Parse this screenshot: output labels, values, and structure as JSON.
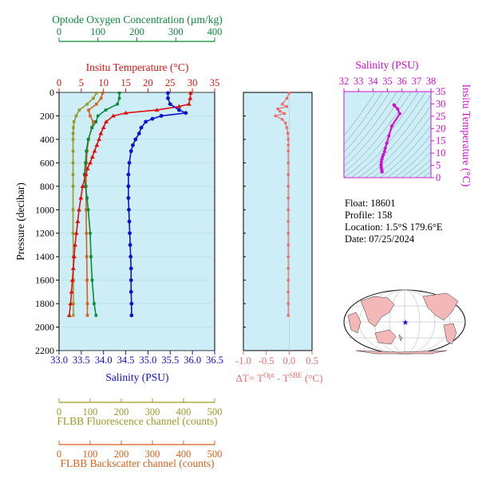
{
  "colors": {
    "oxygen": "#0a8a3a",
    "temperature": "#e01010",
    "salinity": "#1010d0",
    "fluorescence": "#9a9a28",
    "backscatter": "#d86018",
    "delta_t": "#f06a6a",
    "ts_axis": "#d010d0",
    "plot_bg": "#cdeef7",
    "black": "#000000"
  },
  "info": {
    "float": "Float:  18601",
    "profile": "Profile:  158",
    "location": "Location:  1.5°S  179.6°E",
    "date": "Date:  07/25/2024"
  },
  "chart_data": [
    {
      "type": "line",
      "title": "",
      "ylabel": "Pressure (decibar)",
      "ylim": [
        2200,
        0
      ],
      "yticks": [
        "0",
        "200",
        "400",
        "600",
        "800",
        "1000",
        "1200",
        "1400",
        "1600",
        "1800",
        "2000",
        "2200"
      ],
      "axes": {
        "oxygen": {
          "label": "Optode Oxygen Concentration (µm/kg)",
          "ticks": [
            "0",
            "100",
            "200",
            "300",
            "400"
          ],
          "range": [
            0,
            400
          ]
        },
        "temperature": {
          "label": "Insitu Temperature (°C)",
          "ticks": [
            "0",
            "5",
            "10",
            "15",
            "20",
            "25",
            "30",
            "35"
          ],
          "range": [
            0,
            35
          ]
        },
        "salinity": {
          "label": "Salinity (PSU)",
          "ticks": [
            "33.0",
            "33.5",
            "34.0",
            "34.5",
            "35.0",
            "35.5",
            "36.0",
            "36.5"
          ],
          "range": [
            33.0,
            36.5
          ]
        },
        "fluorescence": {
          "label": "FLBB Fluorescence channel (counts)",
          "ticks": [
            "0",
            "100",
            "200",
            "300",
            "400",
            "500"
          ],
          "range": [
            0,
            500
          ]
        },
        "backscatter": {
          "label": "FLBB Backscatter channel (counts)",
          "ticks": [
            "0",
            "100",
            "200",
            "300",
            "400",
            "500"
          ],
          "range": [
            0,
            500
          ]
        }
      },
      "series": [
        {
          "key": "temperature",
          "marker": "triangle",
          "pressure": [
            5,
            50,
            100,
            120,
            150,
            175,
            200,
            250,
            300,
            350,
            400,
            450,
            500,
            550,
            600,
            650,
            700,
            800,
            900,
            1000,
            1100,
            1200,
            1300,
            1400,
            1500,
            1600,
            1700,
            1800,
            1900
          ],
          "values": [
            29.6,
            29.5,
            29.2,
            27.0,
            22.0,
            15.0,
            12.2,
            10.6,
            10.0,
            9.4,
            9.0,
            8.5,
            8.0,
            7.5,
            7.0,
            6.4,
            6.0,
            5.3,
            4.9,
            4.5,
            4.2,
            3.9,
            3.6,
            3.4,
            3.2,
            3.0,
            2.8,
            2.6,
            2.3
          ]
        },
        {
          "key": "salinity",
          "marker": "circle",
          "pressure": [
            5,
            50,
            100,
            150,
            175,
            200,
            225,
            250,
            300,
            350,
            400,
            450,
            500,
            600,
            700,
            800,
            900,
            1000,
            1100,
            1200,
            1300,
            1400,
            1500,
            1600,
            1700,
            1800,
            1900
          ],
          "values": [
            35.45,
            35.45,
            35.5,
            35.7,
            35.85,
            35.3,
            35.1,
            34.95,
            34.85,
            34.8,
            34.72,
            34.66,
            34.62,
            34.58,
            34.56,
            34.56,
            34.56,
            34.57,
            34.58,
            34.59,
            34.6,
            34.61,
            34.62,
            34.62,
            34.62,
            34.63,
            34.63
          ]
        },
        {
          "key": "oxygen",
          "marker": "square",
          "pressure": [
            5,
            50,
            100,
            150,
            200,
            250,
            300,
            400,
            500,
            600,
            700,
            800,
            900,
            1000,
            1200,
            1400,
            1600,
            1800,
            1900
          ],
          "values": [
            155,
            155,
            150,
            120,
            100,
            95,
            85,
            75,
            70,
            68,
            65,
            68,
            72,
            75,
            80,
            82,
            85,
            90,
            95
          ]
        },
        {
          "key": "fluorescence",
          "marker": "square",
          "pressure": [
            5,
            50,
            100,
            150,
            200,
            250,
            300,
            350,
            400,
            500,
            600,
            700,
            800,
            1000,
            1200,
            1400,
            1600,
            1800,
            1900
          ],
          "values": [
            120,
            110,
            90,
            65,
            55,
            48,
            46,
            45,
            45,
            45,
            45,
            45,
            45,
            45,
            45,
            46,
            46,
            46,
            46
          ]
        },
        {
          "key": "backscatter",
          "marker": "square",
          "pressure": [
            5,
            50,
            100,
            150,
            200,
            250,
            300,
            400,
            500,
            600,
            700,
            800,
            1000,
            1200,
            1400,
            1600,
            1800,
            1900
          ],
          "values": [
            140,
            135,
            120,
            95,
            100,
            110,
            105,
            95,
            90,
            88,
            87,
            87,
            87,
            88,
            89,
            90,
            91,
            91
          ]
        }
      ]
    },
    {
      "type": "scatter",
      "xlabel": "ΔT= T",
      "xlabel_sup1": "Opt",
      "xlabel_mid": " - T",
      "xlabel_sup2": "SBE",
      "xlabel_unit": " (°C)",
      "xlim": [
        -1.0,
        0.5
      ],
      "xticks": [
        "-1.0",
        "-0.5",
        "0.0",
        "0.5"
      ],
      "ylim": [
        2200,
        0
      ],
      "series": [
        {
          "key": "delta_t",
          "pressure": [
            5,
            50,
            100,
            120,
            140,
            160,
            180,
            200,
            230,
            260,
            300,
            350,
            400,
            450,
            500,
            600,
            700,
            800,
            900,
            1000,
            1100,
            1200,
            1300,
            1400,
            1500,
            1600,
            1700,
            1800,
            1900
          ],
          "values": [
            0.0,
            -0.05,
            -0.15,
            -0.05,
            -0.25,
            -0.2,
            -0.1,
            -0.3,
            -0.15,
            -0.08,
            -0.05,
            -0.03,
            -0.02,
            -0.02,
            -0.02,
            -0.02,
            -0.02,
            -0.02,
            -0.02,
            -0.02,
            -0.02,
            -0.02,
            -0.02,
            -0.02,
            -0.02,
            -0.02,
            -0.02,
            -0.02,
            -0.02
          ]
        }
      ]
    },
    {
      "type": "line",
      "xlabel": "Salinity (PSU)",
      "ylabel": "Insitu Temperature (°C)",
      "xlim": [
        32,
        38
      ],
      "ylim": [
        0,
        35
      ],
      "xticks": [
        "32",
        "33",
        "34",
        "35",
        "36",
        "37",
        "38"
      ],
      "yticks": [
        "0",
        "5",
        "10",
        "15",
        "20",
        "25",
        "30",
        "35"
      ],
      "series": [
        {
          "key": "ts",
          "salinity": [
            34.63,
            34.62,
            34.6,
            34.58,
            34.57,
            34.56,
            34.58,
            34.62,
            34.66,
            34.72,
            34.8,
            34.85,
            34.95,
            35.1,
            35.3,
            35.85,
            35.7,
            35.5,
            35.45
          ],
          "temperature": [
            2.3,
            2.8,
            3.4,
            3.9,
            4.5,
            5.3,
            6.4,
            7.5,
            8.5,
            9.4,
            10.6,
            12.0,
            14.0,
            17.0,
            21.0,
            26.0,
            28.0,
            29.2,
            29.6
          ]
        }
      ]
    }
  ]
}
